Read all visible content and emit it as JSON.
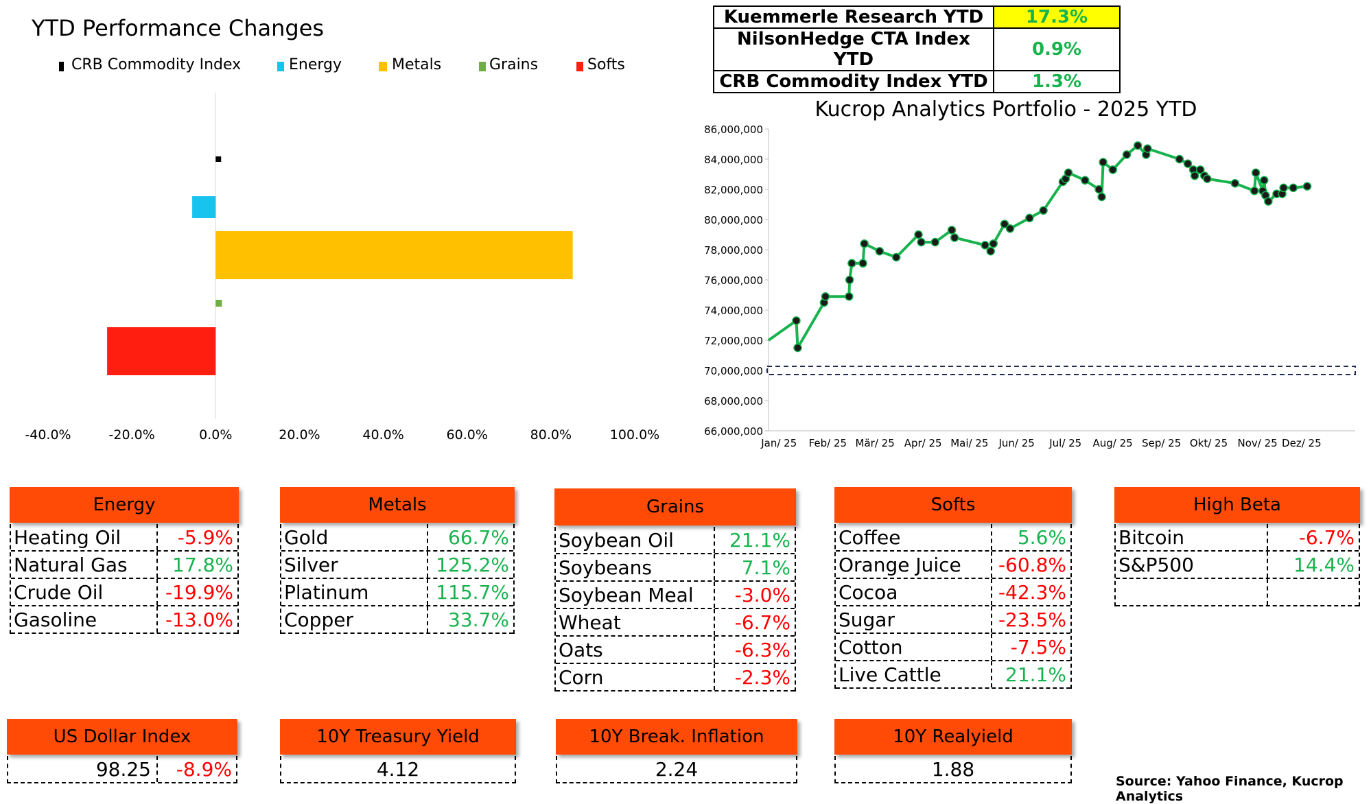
{
  "left_chart": {
    "title": "YTD Performance Changes",
    "legend": [
      {
        "label": "CRB Commodity Index",
        "color": "#000000"
      },
      {
        "label": "Energy",
        "color": "#19c3f0"
      },
      {
        "label": "Metals",
        "color": "#ffc000"
      },
      {
        "label": "Grains",
        "color": "#70ad47"
      },
      {
        "label": "Softs",
        "color": "#ff1e10"
      }
    ]
  },
  "ytd_table": [
    {
      "label": "Kuemmerle Research YTD",
      "value": "17.3%",
      "highlight": "#ffff00"
    },
    {
      "label": "NilsonHedge CTA Index YTD",
      "value": "0.9%"
    },
    {
      "label": "CRB Commodity Index YTD",
      "value": "1.3%"
    }
  ],
  "right_chart": {
    "title": "Kucrop Analytics Portfolio - 2025 YTD",
    "line_color": "#18b34d",
    "reference_line": 70000000
  },
  "chart_data": [
    {
      "type": "bar",
      "orientation": "horizontal",
      "title": "YTD Performance Changes",
      "categories": [
        "CRB Commodity Index",
        "Energy",
        "Metals",
        "Grains",
        "Softs"
      ],
      "values": [
        1.3,
        -5.6,
        85.2,
        1.5,
        -25.9
      ],
      "colors": [
        "#000000",
        "#19c3f0",
        "#ffc000",
        "#70ad47",
        "#ff1e10"
      ],
      "xlim": [
        -40,
        100
      ],
      "xticks": [
        "-40.0%",
        "-20.0%",
        "0.0%",
        "20.0%",
        "40.0%",
        "60.0%",
        "80.0%",
        "100.0%"
      ],
      "legend_position": "top"
    },
    {
      "type": "line",
      "title": "Kucrop Analytics Portfolio - 2025 YTD",
      "x_labels": [
        "Jan/ 25",
        "Feb/ 25",
        "Mär/ 25",
        "Apr/ 25",
        "Mai/ 25",
        "Jun/ 25",
        "Jul/ 25",
        "Aug/ 25",
        "Sep/ 25",
        "Okt/ 25",
        "Nov/ 25",
        "Dez/ 25"
      ],
      "ylim": [
        66000000,
        86000000
      ],
      "y_ticks": [
        "66,000,000",
        "68,000,000",
        "70,000,000",
        "72,000,000",
        "74,000,000",
        "76,000,000",
        "78,000,000",
        "80,000,000",
        "82,000,000",
        "84,000,000",
        "86,000,000"
      ],
      "series": [
        {
          "points": [
            [
              0.0,
              72000000
            ],
            [
              1.0,
              73300000
            ],
            [
              1.05,
              71500000
            ],
            [
              2.0,
              74500000
            ],
            [
              2.05,
              74900000
            ],
            [
              2.9,
              74900000
            ],
            [
              2.92,
              76000000
            ],
            [
              3.0,
              77100000
            ],
            [
              3.4,
              77100000
            ],
            [
              3.45,
              78400000
            ],
            [
              4.0,
              77900000
            ],
            [
              4.6,
              77500000
            ],
            [
              5.4,
              79000000
            ],
            [
              5.5,
              78500000
            ],
            [
              6.0,
              78500000
            ],
            [
              6.6,
              79300000
            ],
            [
              6.7,
              78800000
            ],
            [
              7.8,
              78300000
            ],
            [
              8.0,
              77900000
            ],
            [
              8.1,
              78400000
            ],
            [
              8.5,
              79700000
            ],
            [
              8.7,
              79400000
            ],
            [
              9.4,
              80100000
            ],
            [
              9.9,
              80600000
            ],
            [
              10.6,
              82500000
            ],
            [
              10.7,
              82700000
            ],
            [
              10.8,
              83100000
            ],
            [
              11.4,
              82600000
            ],
            [
              11.9,
              82000000
            ],
            [
              12.0,
              81500000
            ],
            [
              12.05,
              83800000
            ],
            [
              12.4,
              83300000
            ],
            [
              12.9,
              84300000
            ],
            [
              13.3,
              84900000
            ],
            [
              13.6,
              84300000
            ],
            [
              13.65,
              84700000
            ],
            [
              14.8,
              84000000
            ],
            [
              15.1,
              83700000
            ],
            [
              15.3,
              83300000
            ],
            [
              15.35,
              82900000
            ],
            [
              15.55,
              83300000
            ],
            [
              15.7,
              82900000
            ],
            [
              15.8,
              82700000
            ],
            [
              16.8,
              82400000
            ],
            [
              17.5,
              81900000
            ],
            [
              17.55,
              83100000
            ],
            [
              17.8,
              81900000
            ],
            [
              17.85,
              82600000
            ],
            [
              17.9,
              81600000
            ],
            [
              18.0,
              81200000
            ],
            [
              18.3,
              81700000
            ],
            [
              18.5,
              81700000
            ],
            [
              18.55,
              82100000
            ],
            [
              18.9,
              82100000
            ],
            [
              19.4,
              82200000
            ]
          ]
        }
      ],
      "x_range": [
        0,
        19.4
      ],
      "reference_line": 70000000,
      "grid": false
    }
  ],
  "categories": [
    {
      "title": "Energy",
      "rows": [
        {
          "name": "Heating Oil",
          "value": "-5.9%",
          "sign": "neg"
        },
        {
          "name": "Natural Gas",
          "value": "17.8%",
          "sign": "pos"
        },
        {
          "name": "Crude Oil",
          "value": "-19.9%",
          "sign": "neg"
        },
        {
          "name": "Gasoline",
          "value": "-13.0%",
          "sign": "neg"
        }
      ]
    },
    {
      "title": "Metals",
      "rows": [
        {
          "name": "Gold",
          "value": "66.7%",
          "sign": "pos"
        },
        {
          "name": "Silver",
          "value": "125.2%",
          "sign": "pos"
        },
        {
          "name": "Platinum",
          "value": "115.7%",
          "sign": "pos"
        },
        {
          "name": "Copper",
          "value": "33.7%",
          "sign": "pos"
        }
      ]
    },
    {
      "title": "Grains",
      "rows": [
        {
          "name": "Soybean Oil",
          "value": "21.1%",
          "sign": "pos"
        },
        {
          "name": "Soybeans",
          "value": "7.1%",
          "sign": "pos"
        },
        {
          "name": "Soybean Meal",
          "value": "-3.0%",
          "sign": "neg"
        },
        {
          "name": "Wheat",
          "value": "-6.7%",
          "sign": "neg"
        },
        {
          "name": "Oats",
          "value": "-6.3%",
          "sign": "neg"
        },
        {
          "name": "Corn",
          "value": "-2.3%",
          "sign": "neg"
        }
      ]
    },
    {
      "title": "Softs",
      "rows": [
        {
          "name": "Coffee",
          "value": "5.6%",
          "sign": "pos"
        },
        {
          "name": "Orange Juice",
          "value": "-60.8%",
          "sign": "neg"
        },
        {
          "name": "Cocoa",
          "value": "-42.3%",
          "sign": "neg"
        },
        {
          "name": "Sugar",
          "value": "-23.5%",
          "sign": "neg"
        },
        {
          "name": "Cotton",
          "value": "-7.5%",
          "sign": "neg"
        },
        {
          "name": "Live Cattle",
          "value": "21.1%",
          "sign": "pos"
        }
      ]
    },
    {
      "title": "High Beta",
      "rows": [
        {
          "name": "Bitcoin",
          "value": "-6.7%",
          "sign": "neg"
        },
        {
          "name": "S&P500",
          "value": "14.4%",
          "sign": "pos"
        },
        {
          "name": "",
          "value": "",
          "sign": ""
        }
      ]
    }
  ],
  "indicators": [
    {
      "title": "US Dollar Index",
      "value": "98.25",
      "change": "-8.9%"
    },
    {
      "title": "10Y Treasury Yield",
      "value": "4.12"
    },
    {
      "title": "10Y Break. Inflation",
      "value": "2.24"
    },
    {
      "title": "10Y Realyield",
      "value": "1.88"
    }
  ],
  "source": "Source: Yahoo Finance, Kucrop Analytics"
}
